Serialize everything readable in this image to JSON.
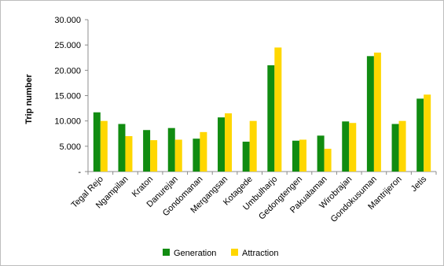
{
  "chart_data": {
    "type": "bar",
    "ylabel": "Trip number",
    "xlabel": "",
    "title": "",
    "ylim": [
      0,
      30000
    ],
    "yticks": [
      {
        "value": 0,
        "label": "-"
      },
      {
        "value": 5000,
        "label": "5.000"
      },
      {
        "value": 10000,
        "label": "10.000"
      },
      {
        "value": 15000,
        "label": "15.000"
      },
      {
        "value": 20000,
        "label": "20.000"
      },
      {
        "value": 25000,
        "label": "25.000"
      },
      {
        "value": 30000,
        "label": "30.000"
      }
    ],
    "grid": false,
    "legend_position": "bottom",
    "categories": [
      "Tegal Rejo",
      "Ngampilan",
      "Kraton",
      "Danurejan",
      "Gondomanan",
      "Mergangsan",
      "Kotagede",
      "Umbulharjo",
      "Gedongtengen",
      "Pakualaman",
      "Wirobrajan",
      "Gondokusuman",
      "Mantrijeron",
      "Jetis"
    ],
    "series": [
      {
        "name": "Generation",
        "color": "#118c11",
        "values": [
          11700,
          9400,
          8200,
          8600,
          6500,
          10700,
          5900,
          21000,
          6100,
          7100,
          9900,
          22800,
          9400,
          14400
        ]
      },
      {
        "name": "Attraction",
        "color": "#ffd700",
        "values": [
          10000,
          7000,
          6200,
          6300,
          7800,
          11500,
          10000,
          24500,
          6300,
          4500,
          9600,
          23500,
          10000,
          15200
        ]
      }
    ]
  }
}
